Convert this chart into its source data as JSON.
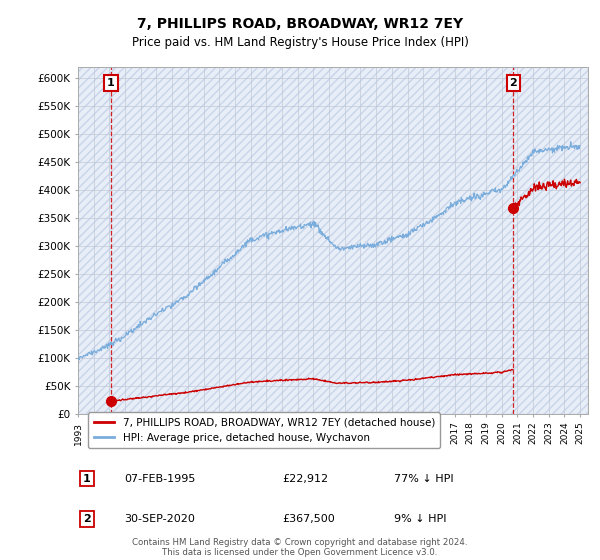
{
  "title": "7, PHILLIPS ROAD, BROADWAY, WR12 7EY",
  "subtitle": "Price paid vs. HM Land Registry's House Price Index (HPI)",
  "property_label": "7, PHILLIPS ROAD, BROADWAY, WR12 7EY (detached house)",
  "hpi_label": "HPI: Average price, detached house, Wychavon",
  "footer": "Contains HM Land Registry data © Crown copyright and database right 2024.\nThis data is licensed under the Open Government Licence v3.0.",
  "sale1": {
    "date": "07-FEB-1995",
    "price": "£22,912",
    "label": "1",
    "pct": "77% ↓ HPI"
  },
  "sale2": {
    "date": "30-SEP-2020",
    "price": "£367,500",
    "label": "2",
    "pct": "9% ↓ HPI"
  },
  "xlim_start": 1993.0,
  "xlim_end": 2025.5,
  "ylim": [
    0,
    620000
  ],
  "yticks": [
    0,
    50000,
    100000,
    150000,
    200000,
    250000,
    300000,
    350000,
    400000,
    450000,
    500000,
    550000,
    600000
  ],
  "ytick_labels": [
    "£0",
    "£50K",
    "£100K",
    "£150K",
    "£200K",
    "£250K",
    "£300K",
    "£350K",
    "£400K",
    "£450K",
    "£500K",
    "£550K",
    "£600K"
  ],
  "hpi_color": "#7aaddc",
  "property_color": "#cc0000",
  "background_color": "#e8eef8",
  "grid_color": "#c0c8d8",
  "sale1_x": 1995.1,
  "sale1_y": 22912,
  "sale2_x": 2020.75,
  "sale2_y": 367500
}
